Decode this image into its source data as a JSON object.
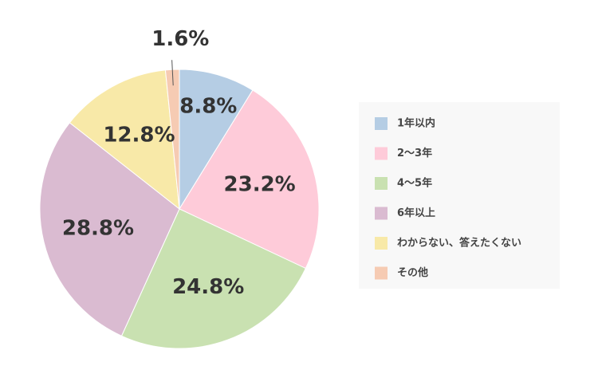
{
  "chart_data": {
    "type": "pie",
    "categories": [
      "1年以内",
      "2〜3年",
      "4〜5年",
      "6年以上",
      "わからない、答えたくない",
      "その他"
    ],
    "values": [
      8.8,
      23.2,
      24.8,
      28.8,
      12.8,
      1.6
    ],
    "value_labels": [
      "8.8%",
      "23.2%",
      "24.8%",
      "28.8%",
      "12.8%",
      "1.6%"
    ],
    "colors": [
      "#b5cde4",
      "#fecbd9",
      "#c9e1b1",
      "#dabbd1",
      "#f8e9a8",
      "#f6cbb3"
    ],
    "legend": "right"
  }
}
